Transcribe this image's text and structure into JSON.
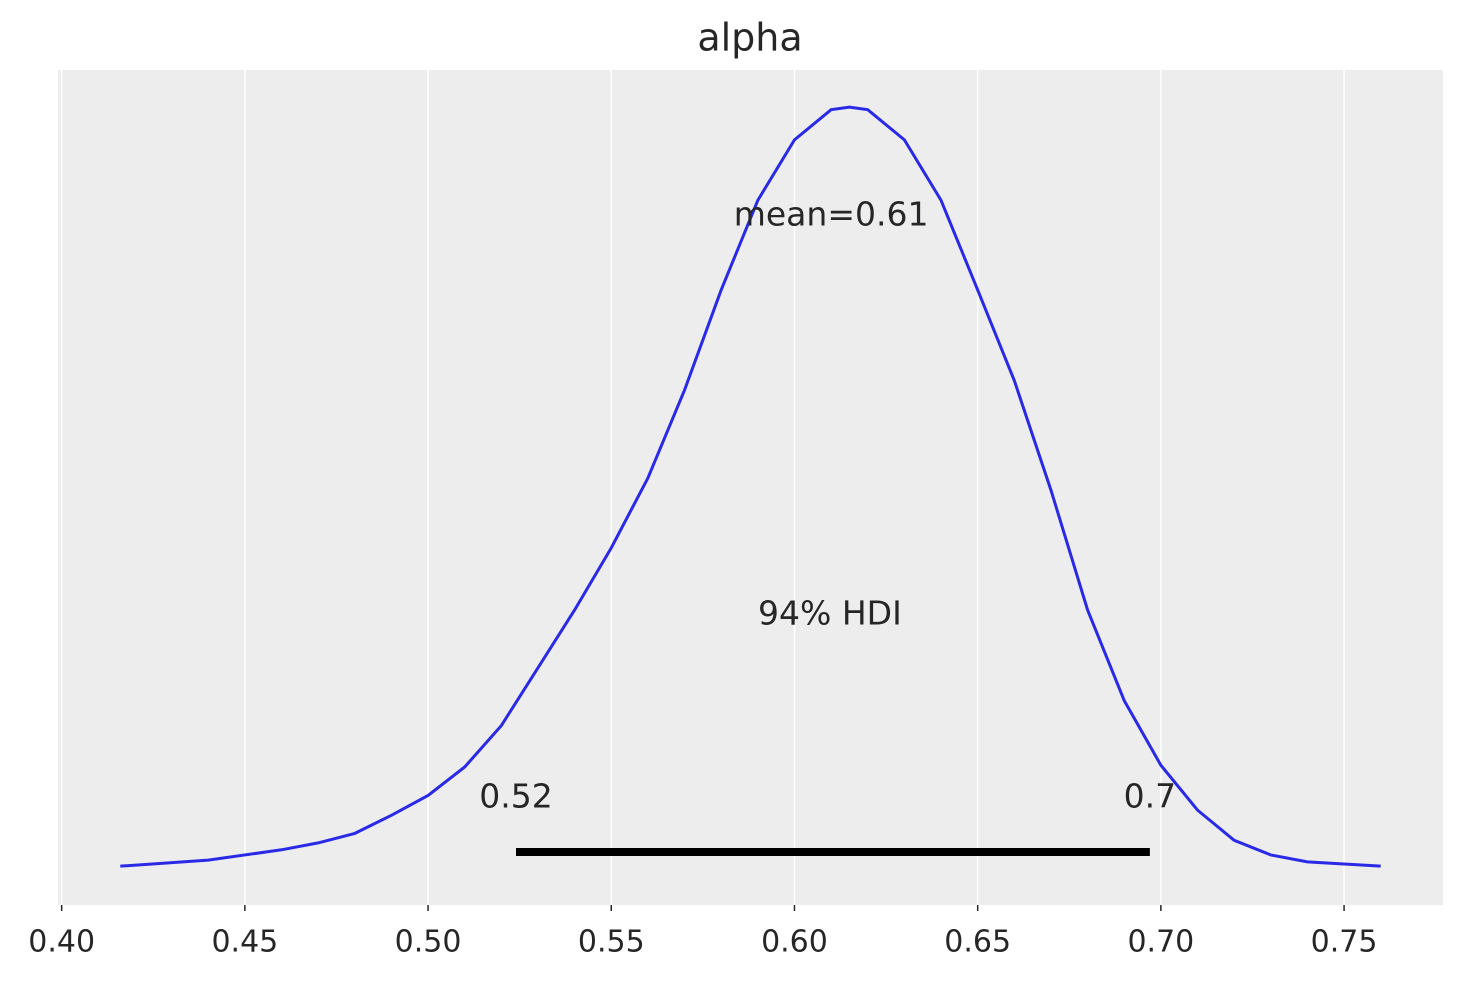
{
  "chart_data": {
    "type": "density",
    "title": "alpha",
    "x": [
      0.416,
      0.44,
      0.46,
      0.47,
      0.48,
      0.49,
      0.5,
      0.51,
      0.52,
      0.53,
      0.54,
      0.55,
      0.56,
      0.57,
      0.58,
      0.59,
      0.6,
      0.61,
      0.615,
      0.62,
      0.63,
      0.64,
      0.65,
      0.66,
      0.67,
      0.68,
      0.69,
      0.7,
      0.71,
      0.72,
      0.73,
      0.74,
      0.76
    ],
    "values": [
      0.0,
      0.07,
      0.19,
      0.27,
      0.38,
      0.59,
      0.82,
      1.15,
      1.63,
      2.3,
      2.97,
      3.69,
      4.5,
      5.52,
      6.68,
      7.72,
      8.42,
      8.77,
      8.8,
      8.77,
      8.42,
      7.72,
      6.68,
      5.63,
      4.36,
      2.97,
      1.92,
      1.17,
      0.65,
      0.3,
      0.13,
      0.05,
      0.0
    ],
    "color": "#2a2ae6",
    "mean": 0.61,
    "mean_label": "mean=0.61",
    "hdi": [
      0.524,
      0.697
    ],
    "hdi_value_labels": [
      "0.52",
      "0.7"
    ],
    "hdi_label": "94% HDI",
    "hdi_color": "#000000",
    "xlim": [
      0.399,
      0.777
    ],
    "ylim": [
      -0.45,
      9.23
    ],
    "xticks": [
      {
        "value": 0.4,
        "label": "0.40"
      },
      0.45,
      {
        "value": 0.5,
        "label": "0.50"
      },
      0.55,
      {
        "value": 0.6,
        "label": "0.60"
      },
      0.65,
      {
        "value": 0.7,
        "label": "0.70"
      },
      0.75
    ],
    "grid": true
  }
}
